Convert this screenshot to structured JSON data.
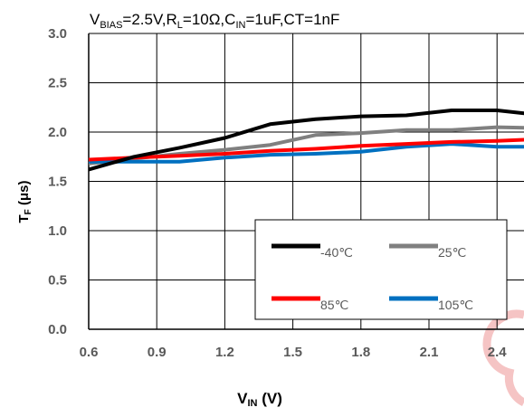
{
  "chart_data": {
    "type": "line",
    "title": {
      "segments": [
        {
          "text": "V",
          "sub": false
        },
        {
          "text": "BIAS",
          "sub": true
        },
        {
          "text": "=2.5V,R",
          "sub": false
        },
        {
          "text": "L",
          "sub": true
        },
        {
          "text": "=10Ω,C",
          "sub": false
        },
        {
          "text": "IN",
          "sub": true
        },
        {
          "text": "=1uF,CT=1nF",
          "sub": false
        }
      ]
    },
    "xlabel": {
      "main": "V",
      "sub": "IN",
      "rest": " (V)"
    },
    "ylabel": {
      "main": "T",
      "sub": "F",
      "rest": " (μs)"
    },
    "xlim": [
      0.6,
      2.6
    ],
    "ylim": [
      0.0,
      3.0
    ],
    "x_ticks": [
      "0.6",
      "0.9",
      "1.2",
      "1.5",
      "1.8",
      "2.1",
      "2.4"
    ],
    "x_tick_values": [
      0.6,
      0.9,
      1.2,
      1.5,
      1.8,
      2.1,
      2.4
    ],
    "y_ticks": [
      "0.0",
      "0.5",
      "1.0",
      "1.5",
      "2.0",
      "2.5",
      "3.0"
    ],
    "y_tick_values": [
      0.0,
      0.5,
      1.0,
      1.5,
      2.0,
      2.5,
      3.0
    ],
    "grid": true,
    "legend_position": "bottom-right",
    "series": [
      {
        "name": "-40℃",
        "color": "#000000",
        "x": [
          0.6,
          0.8,
          1.0,
          1.2,
          1.4,
          1.6,
          1.8,
          2.0,
          2.2,
          2.4,
          2.6
        ],
        "y": [
          1.62,
          1.75,
          1.84,
          1.94,
          2.08,
          2.13,
          2.16,
          2.17,
          2.22,
          2.22,
          2.17
        ]
      },
      {
        "name": "25℃",
        "color": "#808080",
        "x": [
          0.6,
          0.8,
          1.0,
          1.2,
          1.4,
          1.6,
          1.8,
          2.0,
          2.2,
          2.4,
          2.6
        ],
        "y": [
          1.68,
          1.73,
          1.78,
          1.82,
          1.87,
          1.97,
          1.99,
          2.02,
          2.02,
          2.05,
          2.04
        ]
      },
      {
        "name": "85℃",
        "color": "#ff0000",
        "x": [
          0.6,
          0.8,
          1.0,
          1.2,
          1.4,
          1.6,
          1.8,
          2.0,
          2.2,
          2.4,
          2.6
        ],
        "y": [
          1.72,
          1.74,
          1.76,
          1.78,
          1.81,
          1.83,
          1.86,
          1.88,
          1.9,
          1.91,
          1.93
        ]
      },
      {
        "name": "105℃",
        "color": "#0070c0",
        "x": [
          0.6,
          0.8,
          1.0,
          1.2,
          1.4,
          1.6,
          1.8,
          2.0,
          2.2,
          2.4,
          2.6
        ],
        "y": [
          1.7,
          1.7,
          1.7,
          1.74,
          1.77,
          1.78,
          1.8,
          1.85,
          1.88,
          1.85,
          1.85
        ]
      }
    ]
  }
}
